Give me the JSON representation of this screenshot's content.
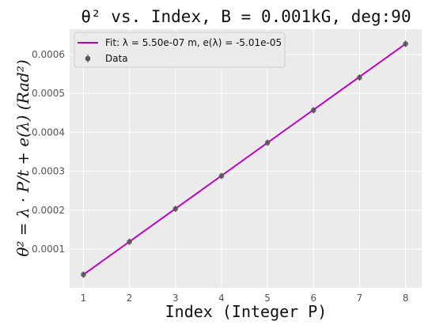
{
  "chart_data": {
    "type": "scatter",
    "title": "θ² vs. Index, B = 0.001kG, deg:90",
    "xlabel": "Index (Integer P)",
    "ylabel": "θ² = λ · P/t + e(λ)  (Rad²)",
    "xlim": [
      0.7,
      8.35
    ],
    "ylim": [
      5e-07,
      0.000665
    ],
    "x_ticks": [
      1,
      2,
      3,
      4,
      5,
      6,
      7,
      8
    ],
    "y_ticks": [
      0.0001,
      0.0002,
      0.0003,
      0.0004,
      0.0005,
      0.0006
    ],
    "y_tick_labels": [
      "0.0001",
      "0.0002",
      "0.0003",
      "0.0004",
      "0.0005",
      "0.0006"
    ],
    "grid": true,
    "legend_position": "top-left",
    "series": [
      {
        "name": "Data",
        "kind": "points-with-errorbars",
        "x": [
          1,
          2,
          3,
          4,
          5,
          6,
          7,
          8
        ],
        "y": [
          3.45e-05,
          0.000119,
          0.0002035,
          0.000288,
          0.0003735,
          0.000457,
          0.000541,
          0.0006275
        ],
        "color": "#555555"
      },
      {
        "name": "Fit: λ = 5.50e-07 m, e(λ) = -5.01e-05",
        "kind": "line",
        "x": [
          1,
          8
        ],
        "y": [
          3.45e-05,
          0.0006275
        ],
        "color": "#bf00bf"
      }
    ]
  },
  "colors": {
    "plot_background": "#ebebeb",
    "grid": "#ffffff",
    "fit_line": "#bf00bf",
    "points": "#555555"
  }
}
